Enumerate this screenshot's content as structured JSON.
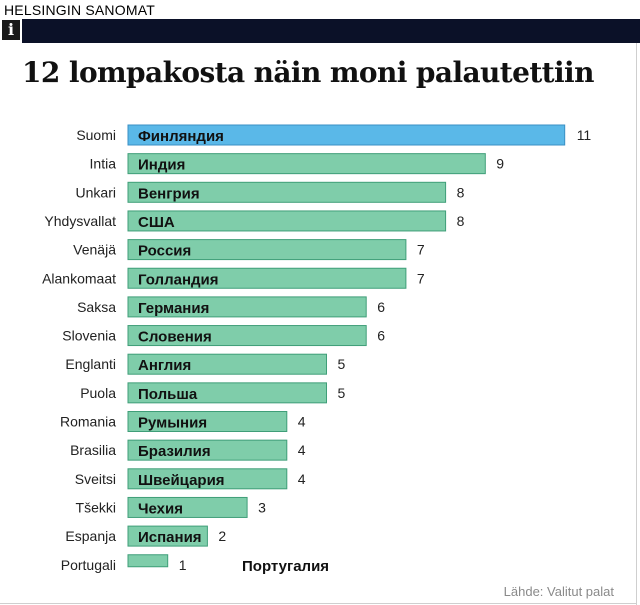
{
  "header": {
    "brand": "HELSINGIN SANOMAT",
    "icon": "info-icon"
  },
  "title": "12 lompakosta näin moni palautettiin",
  "source": "Lähde: Valitut palat",
  "colors": {
    "bar": "#7fcdaa",
    "bar_highlight": "#5ab8e8",
    "bar_border": "#3f9e78",
    "bar_highlight_border": "#3a8fc4",
    "header_bar": "#0b1128"
  },
  "chart_data": {
    "type": "bar",
    "orientation": "horizontal",
    "categories": [
      "Suomi",
      "Intia",
      "Unkari",
      "Yhdysvallat",
      "Venäjä",
      "Alankomaat",
      "Saksa",
      "Slovenia",
      "Englanti",
      "Puola",
      "Romania",
      "Brasilia",
      "Sveitsi",
      "Tšekki",
      "Espanja",
      "Portugali"
    ],
    "bar_labels": [
      "Финляндия",
      "Индия",
      "Венгрия",
      "США",
      "Россия",
      "Голландия",
      "Германия",
      "Словения",
      "Англия",
      "Польша",
      "Румыния",
      "Бразилия",
      "Швейцария",
      "Чехия",
      "Испания",
      "Португалия"
    ],
    "values": [
      11,
      9,
      8,
      8,
      7,
      7,
      6,
      6,
      5,
      5,
      4,
      4,
      4,
      3,
      2,
      1
    ],
    "highlight": "Suomi",
    "title": "12 lompakosta näin moni palautettiin",
    "xlabel": "",
    "ylabel": "",
    "xlim": [
      0,
      11
    ]
  }
}
